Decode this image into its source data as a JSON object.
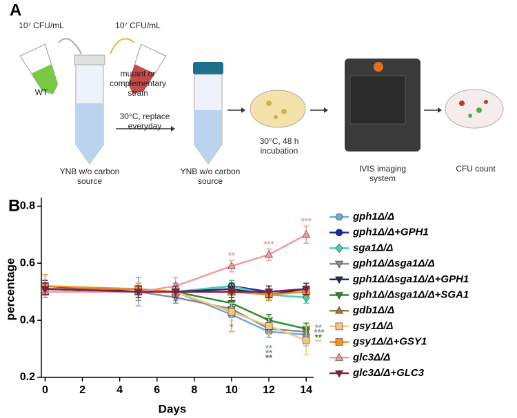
{
  "panel_a": {
    "letter": "A",
    "conc_wt": "10⁷ CFU/mL",
    "conc_mutant": "10⁷ CFU/mL",
    "wt": "WT",
    "mutant": "mutant or complementary strain",
    "culture": "30°C, replace everyday",
    "tube1": "YNB w/o carbon source",
    "tube2": "YNB w/o carbon source",
    "incubation": "30°C, 48 h incubation",
    "imaging": "IVIS imaging system",
    "count": "CFU count"
  },
  "chart_data": {
    "type": "line",
    "letter": "B",
    "x_label": "Days",
    "y_label": "percentage",
    "xlim": [
      -0.2,
      14.4
    ],
    "xticks": [
      0,
      2,
      4,
      6,
      8,
      10,
      12,
      14
    ],
    "ylim": [
      0.2,
      0.83
    ],
    "yticks": [
      0.2,
      0.4,
      0.6,
      0.8
    ],
    "x": [
      0,
      5,
      7,
      10,
      12,
      14
    ],
    "series": [
      {
        "name": "gph1Δ/Δ",
        "color": "#6fa8e0",
        "marker": "circle",
        "values": [
          0.51,
          0.5,
          0.5,
          0.42,
          0.36,
          0.35
        ],
        "errors": [
          0.03,
          0.05,
          0.03,
          0.06,
          0.02,
          0.04
        ]
      },
      {
        "name": "gph1Δ/Δ+GPH1",
        "color": "#1a2a9c",
        "marker": "circle",
        "values": [
          0.52,
          0.5,
          0.5,
          0.52,
          0.5,
          0.51
        ],
        "errors": [
          0.02,
          0.02,
          0.02,
          0.02,
          0.02,
          0.02
        ]
      },
      {
        "name": "sga1Δ/Δ",
        "color": "#3fd3b5",
        "marker": "diamond",
        "values": [
          0.51,
          0.51,
          0.5,
          0.52,
          0.49,
          0.48
        ],
        "errors": [
          0.02,
          0.02,
          0.02,
          0.02,
          0.02,
          0.02
        ]
      },
      {
        "name": "gph1Δ/Δsga1Δ/Δ",
        "color": "#8c8c8c",
        "marker": "triangle-down",
        "values": [
          0.51,
          0.5,
          0.48,
          0.44,
          0.37,
          0.36
        ],
        "errors": [
          0.02,
          0.03,
          0.02,
          0.03,
          0.02,
          0.02
        ]
      },
      {
        "name": "gph1Δ/Δsga1Δ/Δ+GPH1",
        "color": "#1c2a66",
        "marker": "triangle-down",
        "values": [
          0.51,
          0.5,
          0.5,
          0.51,
          0.49,
          0.51
        ],
        "errors": [
          0.02,
          0.02,
          0.02,
          0.02,
          0.02,
          0.02
        ]
      },
      {
        "name": "gph1Δ/Δsga1Δ/Δ+SGA1",
        "color": "#2e8b2e",
        "marker": "triangle-down",
        "values": [
          0.5,
          0.5,
          0.5,
          0.46,
          0.4,
          0.37
        ],
        "errors": [
          0.02,
          0.02,
          0.02,
          0.02,
          0.02,
          0.02
        ]
      },
      {
        "name": "gdb1Δ/Δ",
        "color": "#a0783c",
        "marker": "triangle-up",
        "values": [
          0.51,
          0.51,
          0.5,
          0.5,
          0.49,
          0.5
        ],
        "errors": [
          0.02,
          0.02,
          0.02,
          0.02,
          0.02,
          0.02
        ]
      },
      {
        "name": "gsy1Δ/Δ",
        "color": "#f5c77e",
        "marker": "square",
        "values": [
          0.5,
          0.5,
          0.5,
          0.43,
          0.38,
          0.33
        ],
        "errors": [
          0.02,
          0.02,
          0.02,
          0.03,
          0.03,
          0.05
        ]
      },
      {
        "name": "gsy1Δ/Δ+GSY1",
        "color": "#f39020",
        "marker": "square",
        "values": [
          0.52,
          0.51,
          0.5,
          0.5,
          0.49,
          0.5
        ],
        "errors": [
          0.04,
          0.02,
          0.02,
          0.02,
          0.02,
          0.02
        ]
      },
      {
        "name": "glc3Δ/Δ",
        "color": "#f29a9a",
        "marker": "triangle-up",
        "values": [
          0.5,
          0.5,
          0.52,
          0.59,
          0.63,
          0.7
        ],
        "errors": [
          0.02,
          0.02,
          0.03,
          0.02,
          0.02,
          0.03
        ]
      },
      {
        "name": "glc3Δ/Δ+GLC3",
        "color": "#8b1a4a",
        "marker": "triangle-down",
        "values": [
          0.51,
          0.5,
          0.5,
          0.5,
          0.5,
          0.51
        ],
        "errors": [
          0.02,
          0.02,
          0.02,
          0.02,
          0.02,
          0.02
        ]
      }
    ],
    "annotations": [
      {
        "label": "**",
        "x": 10,
        "y": 0.625,
        "color": "#f29a9a"
      },
      {
        "label": "***",
        "x": 12,
        "y": 0.665,
        "color": "#f29a9a"
      },
      {
        "label": "***",
        "x": 14,
        "y": 0.745,
        "color": "#f29a9a"
      },
      {
        "label": "*",
        "x": 10,
        "y": 0.375,
        "color": "#8c8c8c"
      },
      {
        "label": "*",
        "x": 10,
        "y": 0.355,
        "color": "#f5c77e"
      },
      {
        "label": "**",
        "x": 12,
        "y": 0.3,
        "color": "#6fa8e0"
      },
      {
        "label": "**",
        "x": 12,
        "y": 0.283,
        "color": "#8c8c8c"
      },
      {
        "label": "**",
        "x": 12,
        "y": 0.266,
        "color": "#2e8b2e"
      },
      {
        "label": "**",
        "x": 14.65,
        "y": 0.372,
        "color": "#6fa8e0"
      },
      {
        "label": "***",
        "x": 14.7,
        "y": 0.355,
        "color": "#8c8c8c"
      },
      {
        "label": "**",
        "x": 14.65,
        "y": 0.337,
        "color": "#2e8b2e"
      },
      {
        "label": "**",
        "x": 14.65,
        "y": 0.32,
        "color": "#f5c77e"
      }
    ]
  }
}
